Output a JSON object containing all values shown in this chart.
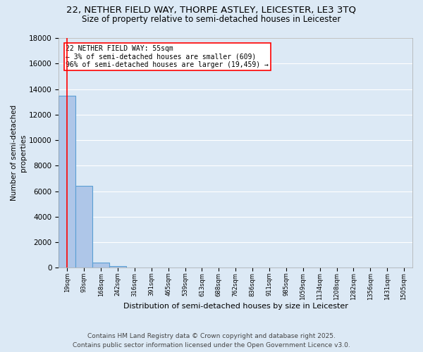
{
  "title": "22, NETHER FIELD WAY, THORPE ASTLEY, LEICESTER, LE3 3TQ",
  "subtitle": "Size of property relative to semi-detached houses in Leicester",
  "xlabel": "Distribution of semi-detached houses by size in Leicester",
  "ylabel": "Number of semi-detached\nproperties",
  "bin_labels": [
    "19sqm",
    "93sqm",
    "168sqm",
    "242sqm",
    "316sqm",
    "391sqm",
    "465sqm",
    "539sqm",
    "613sqm",
    "688sqm",
    "762sqm",
    "836sqm",
    "911sqm",
    "985sqm",
    "1059sqm",
    "1134sqm",
    "1208sqm",
    "1282sqm",
    "1356sqm",
    "1431sqm",
    "1505sqm"
  ],
  "bar_values": [
    13500,
    6400,
    400,
    150,
    0,
    0,
    0,
    0,
    0,
    0,
    0,
    0,
    0,
    0,
    0,
    0,
    0,
    0,
    0,
    0,
    0
  ],
  "bar_color": "#aec6e8",
  "bar_edge_color": "#5a9fd4",
  "property_line_color": "red",
  "annotation_text": "22 NETHER FIELD WAY: 55sqm\n← 3% of semi-detached houses are smaller (609)\n96% of semi-detached houses are larger (19,459) →",
  "annotation_box_color": "white",
  "annotation_box_edge_color": "red",
  "ylim": [
    0,
    18000
  ],
  "yticks": [
    0,
    2000,
    4000,
    6000,
    8000,
    10000,
    12000,
    14000,
    16000,
    18000
  ],
  "background_color": "#dce9f5",
  "grid_color": "white",
  "footer_line1": "Contains HM Land Registry data © Crown copyright and database right 2025.",
  "footer_line2": "Contains public sector information licensed under the Open Government Licence v3.0.",
  "title_fontsize": 9.5,
  "subtitle_fontsize": 8.5,
  "annotation_fontsize": 7,
  "footer_fontsize": 6.5,
  "ylabel_fontsize": 7.5,
  "xlabel_fontsize": 8
}
